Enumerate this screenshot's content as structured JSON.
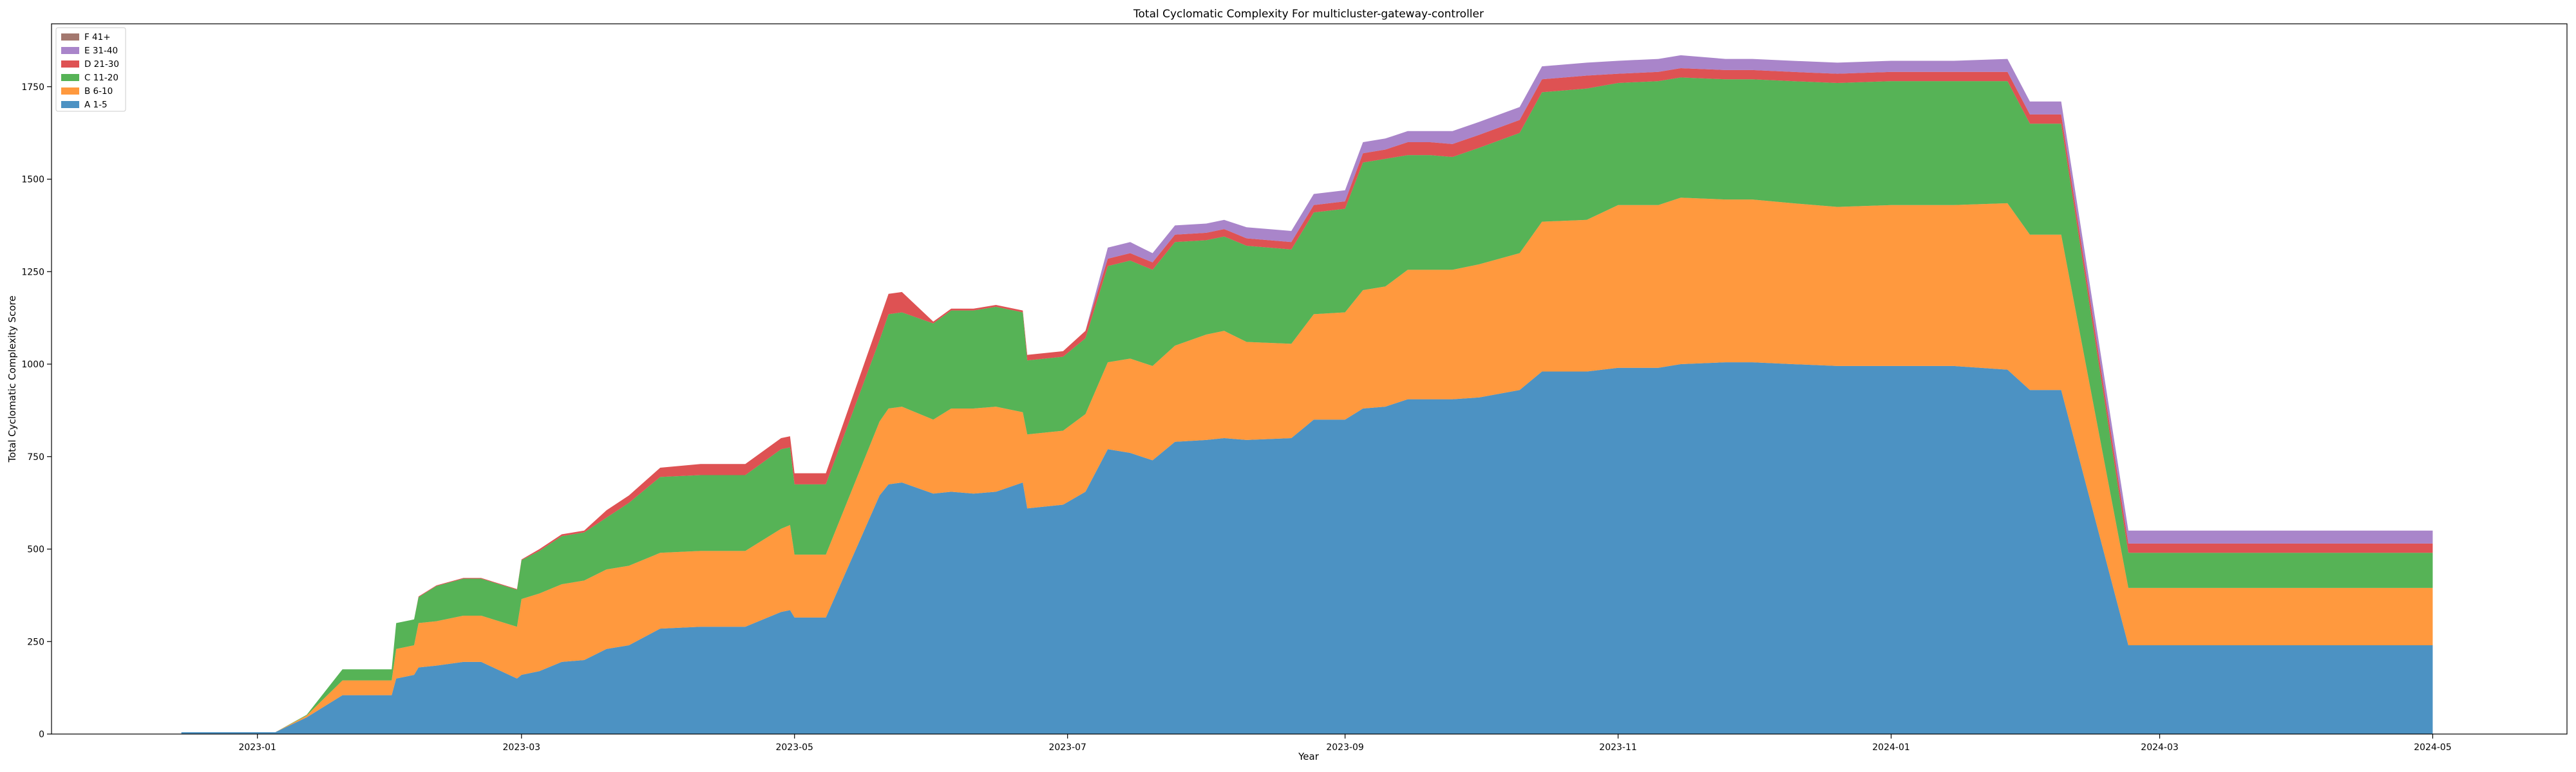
{
  "chart_data": {
    "type": "area",
    "stacked": true,
    "title": "Total Cyclomatic Complexity For multicluster-gateway-controller",
    "xlabel": "Year",
    "ylabel": "Total Cyclomatic Complexity Score",
    "xlim": [
      "2022-11-16",
      "2024-05-31"
    ],
    "ylim": [
      0,
      1920
    ],
    "x_ticks": [
      "2023-01",
      "2023-03",
      "2023-05",
      "2023-07",
      "2023-09",
      "2023-11",
      "2024-01",
      "2024-03",
      "2024-05"
    ],
    "y_ticks": [
      0,
      250,
      500,
      750,
      1000,
      1250,
      1500,
      1750
    ],
    "grid": false,
    "legend_position": "top-left",
    "legend_order": [
      "F 41+",
      "E 31-40",
      "D 21-30",
      "C 11-20",
      "B 6-10",
      "A 1-5"
    ],
    "x": [
      "2022-12-15",
      "2023-01-05",
      "2023-01-12",
      "2023-01-20",
      "2023-01-31",
      "2023-02-01",
      "2023-02-05",
      "2023-02-06",
      "2023-02-10",
      "2023-02-16",
      "2023-02-20",
      "2023-02-28",
      "2023-03-01",
      "2023-03-05",
      "2023-03-10",
      "2023-03-15",
      "2023-03-20",
      "2023-03-25",
      "2023-04-01",
      "2023-04-10",
      "2023-04-20",
      "2023-04-28",
      "2023-04-30",
      "2023-05-01",
      "2023-05-08",
      "2023-05-20",
      "2023-05-22",
      "2023-05-25",
      "2023-06-01",
      "2023-06-05",
      "2023-06-10",
      "2023-06-15",
      "2023-06-21",
      "2023-06-22",
      "2023-06-30",
      "2023-07-05",
      "2023-07-10",
      "2023-07-15",
      "2023-07-20",
      "2023-07-25",
      "2023-08-01",
      "2023-08-05",
      "2023-08-10",
      "2023-08-20",
      "2023-08-25",
      "2023-09-01",
      "2023-09-05",
      "2023-09-10",
      "2023-09-15",
      "2023-09-20",
      "2023-09-25",
      "2023-10-01",
      "2023-10-10",
      "2023-10-15",
      "2023-10-25",
      "2023-11-01",
      "2023-11-10",
      "2023-11-15",
      "2023-11-25",
      "2023-12-01",
      "2023-12-10",
      "2023-12-20",
      "2024-01-01",
      "2024-01-15",
      "2024-01-27",
      "2024-02-01",
      "2024-02-08",
      "2024-02-23",
      "2024-03-01",
      "2024-03-15",
      "2024-04-01",
      "2024-04-15",
      "2024-05-01"
    ],
    "series": [
      {
        "name": "A 1-5",
        "color": "#1f77b4",
        "values": [
          5,
          5,
          45,
          105,
          105,
          150,
          160,
          180,
          185,
          195,
          195,
          150,
          160,
          170,
          195,
          200,
          230,
          240,
          285,
          290,
          290,
          330,
          335,
          315,
          315,
          645,
          675,
          680,
          650,
          655,
          650,
          655,
          680,
          610,
          620,
          655,
          770,
          760,
          740,
          790,
          795,
          800,
          795,
          800,
          850,
          850,
          880,
          885,
          905,
          905,
          905,
          910,
          930,
          980,
          980,
          990,
          990,
          1000,
          1005,
          1005,
          1000,
          995,
          995,
          995,
          985,
          930,
          930,
          240,
          240,
          240,
          240,
          240,
          240
        ]
      },
      {
        "name": "B 6-10",
        "color": "#ff7f0e",
        "values": [
          0,
          0,
          5,
          40,
          40,
          80,
          80,
          120,
          120,
          125,
          125,
          140,
          205,
          210,
          210,
          215,
          215,
          215,
          205,
          205,
          205,
          225,
          230,
          170,
          170,
          200,
          205,
          205,
          200,
          225,
          230,
          230,
          190,
          200,
          200,
          210,
          235,
          255,
          255,
          260,
          285,
          290,
          265,
          255,
          285,
          290,
          320,
          325,
          350,
          350,
          350,
          360,
          370,
          405,
          410,
          440,
          440,
          450,
          440,
          440,
          435,
          430,
          435,
          435,
          450,
          420,
          420,
          155,
          155,
          155,
          155,
          155,
          155
        ]
      },
      {
        "name": "C 11-20",
        "color": "#2ca02c",
        "values": [
          0,
          0,
          2,
          30,
          30,
          70,
          70,
          70,
          95,
          100,
          100,
          100,
          105,
          115,
          130,
          130,
          140,
          170,
          205,
          205,
          205,
          215,
          210,
          190,
          190,
          220,
          255,
          255,
          260,
          265,
          265,
          270,
          270,
          200,
          200,
          205,
          260,
          265,
          260,
          280,
          255,
          255,
          260,
          255,
          275,
          280,
          345,
          345,
          310,
          310,
          305,
          315,
          325,
          350,
          355,
          330,
          335,
          325,
          325,
          325,
          330,
          335,
          335,
          335,
          330,
          300,
          300,
          95,
          95,
          95,
          95,
          95,
          95
        ]
      },
      {
        "name": "D 21-30",
        "color": "#d62728",
        "values": [
          0,
          0,
          0,
          0,
          0,
          0,
          0,
          2,
          2,
          2,
          2,
          2,
          2,
          5,
          5,
          5,
          20,
          20,
          25,
          30,
          30,
          30,
          30,
          30,
          30,
          55,
          55,
          55,
          5,
          5,
          5,
          5,
          5,
          15,
          15,
          20,
          20,
          20,
          20,
          20,
          20,
          20,
          20,
          20,
          20,
          20,
          25,
          25,
          35,
          35,
          35,
          35,
          35,
          35,
          35,
          25,
          25,
          25,
          25,
          25,
          25,
          25,
          25,
          25,
          25,
          25,
          25,
          25,
          25,
          25,
          25,
          25,
          25
        ]
      },
      {
        "name": "E 31-40",
        "color": "#9467bd",
        "values": [
          0,
          0,
          0,
          0,
          0,
          0,
          0,
          0,
          0,
          0,
          0,
          0,
          0,
          0,
          0,
          0,
          0,
          0,
          0,
          0,
          0,
          0,
          0,
          0,
          0,
          0,
          0,
          0,
          0,
          0,
          0,
          0,
          0,
          0,
          0,
          0,
          30,
          30,
          25,
          25,
          25,
          25,
          30,
          30,
          30,
          30,
          30,
          30,
          30,
          30,
          35,
          35,
          35,
          35,
          35,
          35,
          35,
          35,
          30,
          30,
          30,
          30,
          30,
          30,
          35,
          35,
          35,
          35,
          35,
          35,
          35,
          35,
          35
        ]
      },
      {
        "name": "F 41+",
        "color": "#8c564b",
        "values": [
          0,
          0,
          0,
          0,
          0,
          0,
          0,
          0,
          0,
          0,
          0,
          0,
          0,
          0,
          0,
          0,
          0,
          0,
          0,
          0,
          0,
          0,
          0,
          0,
          0,
          0,
          0,
          0,
          0,
          0,
          0,
          0,
          0,
          0,
          0,
          0,
          0,
          0,
          0,
          0,
          0,
          0,
          0,
          0,
          0,
          0,
          0,
          0,
          0,
          0,
          0,
          0,
          0,
          0,
          0,
          0,
          0,
          0,
          0,
          0,
          0,
          0,
          0,
          0,
          0,
          0,
          0,
          0,
          0,
          0,
          0,
          0,
          0
        ]
      }
    ]
  }
}
